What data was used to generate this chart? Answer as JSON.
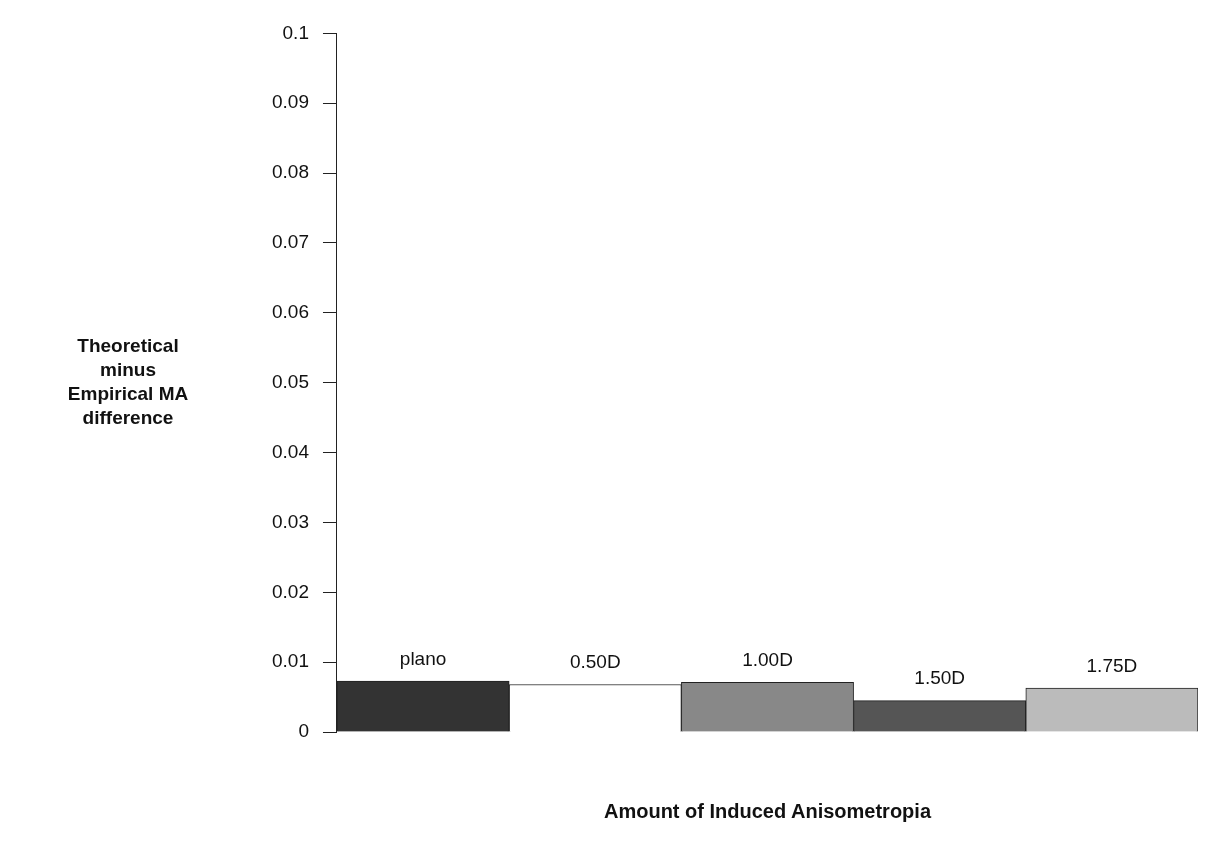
{
  "chart_data": {
    "type": "bar",
    "xlabel": "Amount of Induced Anisometropia",
    "ylabel": "Theoretical minus Empirical MA difference",
    "categories": [
      "plano",
      "0.50D",
      "1.00D",
      "1.50D",
      "1.75D"
    ],
    "values": [
      0.0073,
      0.0068,
      0.0071,
      0.0045,
      0.0063
    ],
    "colors": [
      "#333333",
      "#ffffff",
      "#888888",
      "#555555",
      "#bbbbbb"
    ],
    "ylim": [
      0,
      0.1
    ],
    "yticks": [
      0,
      0.01,
      0.02,
      0.03,
      0.04,
      0.05,
      0.06,
      0.07,
      0.08,
      0.09,
      0.1
    ],
    "grid": false,
    "legend": false
  }
}
